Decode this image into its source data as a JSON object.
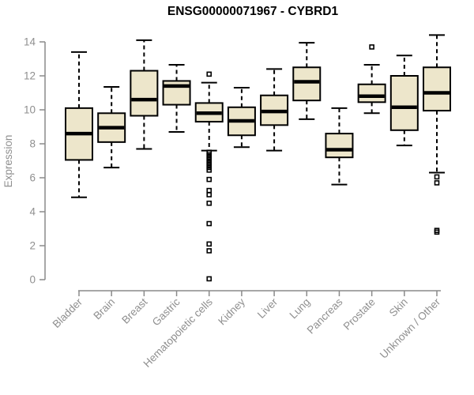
{
  "chart_data": {
    "type": "boxplot",
    "title": "ENSG00000071967 - CYBRD1",
    "ylabel": "Expression",
    "xlabel": "",
    "ylim": [
      0,
      14.4
    ],
    "yticks": [
      0,
      2,
      4,
      6,
      8,
      10,
      12,
      14
    ],
    "grid": false,
    "legend": false,
    "categories": [
      "Bladder",
      "Brain",
      "Breast",
      "Gastric",
      "Hematopoietic cells",
      "Kidney",
      "Liver",
      "Lung",
      "Pancreas",
      "Prostate",
      "Skin",
      "Unknown / Other"
    ],
    "series": [
      {
        "name": "Bladder",
        "low": 4.85,
        "q1": 7.05,
        "median": 8.6,
        "q3": 10.1,
        "high": 13.4,
        "outliers": []
      },
      {
        "name": "Brain",
        "low": 6.6,
        "q1": 8.1,
        "median": 8.95,
        "q3": 9.8,
        "high": 11.35,
        "outliers": []
      },
      {
        "name": "Breast",
        "low": 7.7,
        "q1": 9.65,
        "median": 10.6,
        "q3": 12.3,
        "high": 14.1,
        "outliers": []
      },
      {
        "name": "Gastric",
        "low": 8.7,
        "q1": 10.3,
        "median": 11.4,
        "q3": 11.7,
        "high": 12.65,
        "outliers": []
      },
      {
        "name": "Hematopoietic cells",
        "low": 7.6,
        "q1": 9.3,
        "median": 9.8,
        "q3": 10.4,
        "high": 11.6,
        "outliers": [
          12.1,
          7.5,
          7.35,
          7.2,
          7.05,
          6.9,
          6.75,
          6.6,
          6.45,
          5.9,
          5.25,
          5.0,
          4.5,
          3.3,
          2.1,
          1.7,
          0.05
        ]
      },
      {
        "name": "Kidney",
        "low": 7.8,
        "q1": 8.5,
        "median": 9.35,
        "q3": 10.15,
        "high": 11.3,
        "outliers": []
      },
      {
        "name": "Liver",
        "low": 7.6,
        "q1": 9.1,
        "median": 9.9,
        "q3": 10.85,
        "high": 12.4,
        "outliers": []
      },
      {
        "name": "Lung",
        "low": 9.45,
        "q1": 10.55,
        "median": 11.65,
        "q3": 12.5,
        "high": 13.95,
        "outliers": []
      },
      {
        "name": "Pancreas",
        "low": 5.6,
        "q1": 7.2,
        "median": 7.65,
        "q3": 8.6,
        "high": 10.1,
        "outliers": []
      },
      {
        "name": "Prostate",
        "low": 9.8,
        "q1": 10.45,
        "median": 10.8,
        "q3": 11.5,
        "high": 12.65,
        "outliers": [
          13.7
        ]
      },
      {
        "name": "Skin",
        "low": 7.9,
        "q1": 8.8,
        "median": 10.15,
        "q3": 12.0,
        "high": 13.2,
        "outliers": []
      },
      {
        "name": "Unknown / Other",
        "low": 6.3,
        "q1": 9.95,
        "median": 11.0,
        "q3": 12.5,
        "high": 14.4,
        "outliers": [
          6.05,
          5.7,
          2.9,
          2.8
        ]
      }
    ],
    "colors": {
      "background": "#ffffff",
      "box_fill": "#ede6cb",
      "box_stroke": "#000000",
      "median": "#000000",
      "whisker": "#000000",
      "axis": "#8a8a8a",
      "tick_label": "#8f8f8f",
      "title": "#000000"
    }
  }
}
